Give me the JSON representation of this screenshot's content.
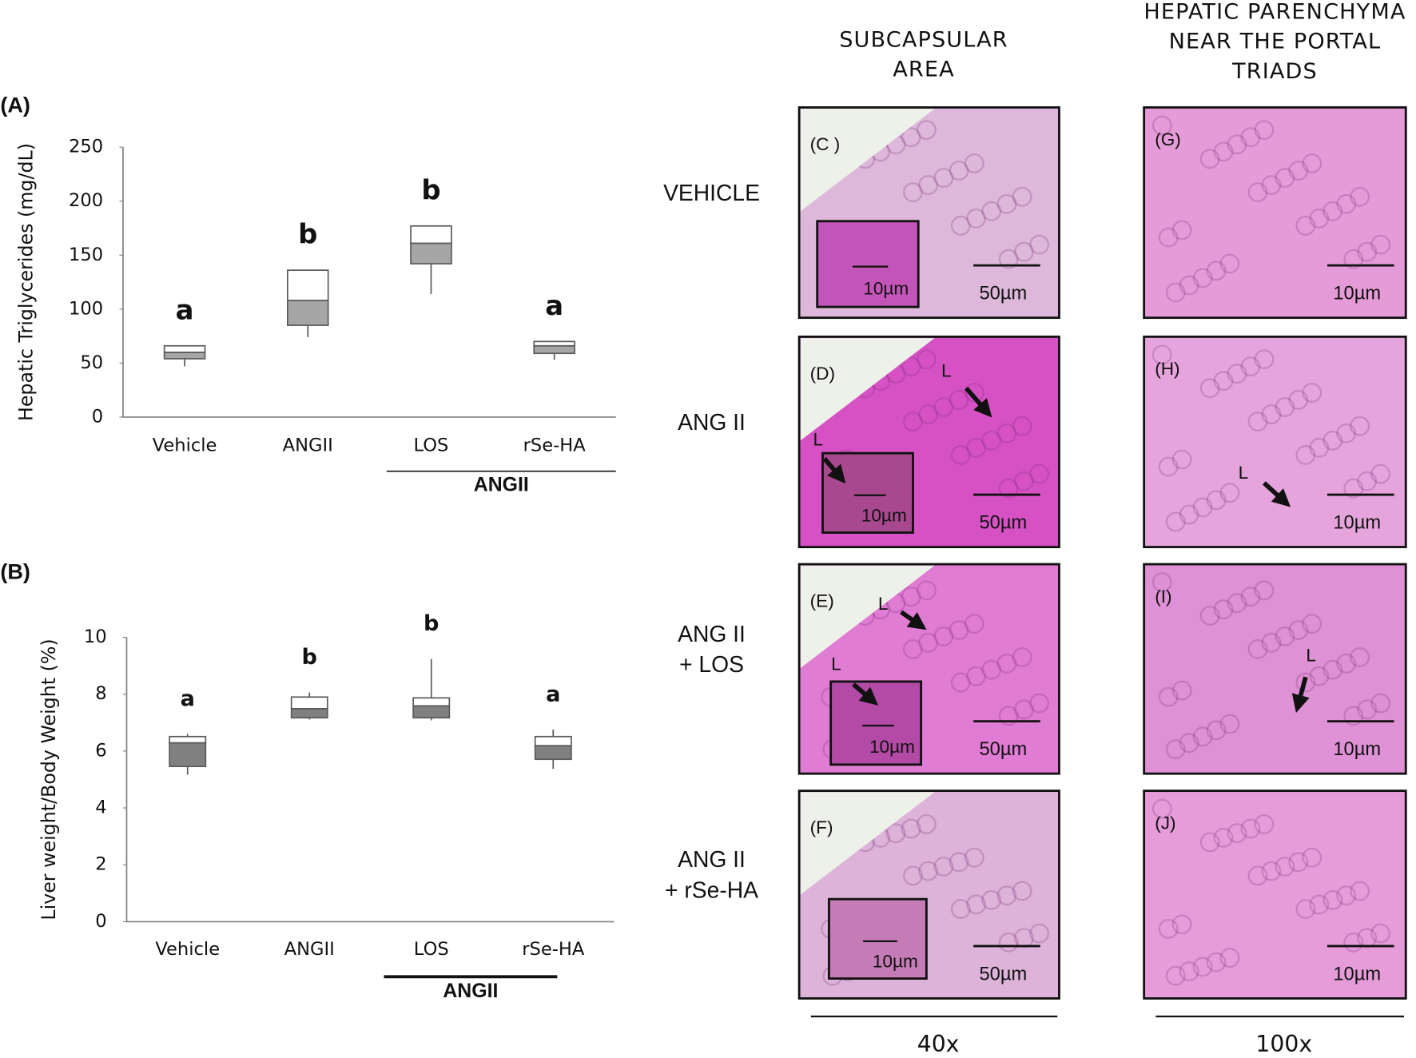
{
  "chart_data": [
    {
      "type": "box",
      "panel_label": "(A)",
      "y_label": "Hepatic Triglycerides (mg/dL)",
      "categories": [
        "Vehicle",
        "ANGII",
        "LOS",
        "rSe-HA"
      ],
      "group_label": "ANGII",
      "boxes": [
        {
          "min": 47,
          "q1": 54,
          "median": 60,
          "q3": 66,
          "max": 66
        },
        {
          "min": 74,
          "q1": 85,
          "median": 108,
          "q3": 136,
          "max": 136
        },
        {
          "min": 114,
          "q1": 142,
          "median": 161,
          "q3": 177,
          "max": 177
        },
        {
          "min": 53,
          "q1": 59,
          "median": 66,
          "q3": 70,
          "max": 70
        }
      ],
      "letters": [
        "a",
        "b",
        "b",
        "a"
      ],
      "colors": {
        "lower": "#a6a6a6",
        "upper": "#ffffff"
      },
      "ylim": [
        0,
        250
      ],
      "yticks": [
        0,
        50,
        100,
        150,
        200,
        250
      ]
    },
    {
      "type": "box",
      "panel_label": "(B)",
      "y_label": "Liver weight/Body Weight (%)",
      "categories": [
        "Vehicle",
        "ANGII",
        "LOS",
        "rSe-HA"
      ],
      "group_label": "ANGII",
      "boxes": [
        {
          "min": 5.17,
          "q1": 5.46,
          "median": 6.29,
          "q3": 6.51,
          "max": 6.6
        },
        {
          "min": 7.11,
          "q1": 7.17,
          "median": 7.49,
          "q3": 7.9,
          "max": 8.06
        },
        {
          "min": 7.08,
          "q1": 7.17,
          "median": 7.59,
          "q3": 7.87,
          "max": 9.24
        },
        {
          "min": 5.37,
          "q1": 5.71,
          "median": 6.19,
          "q3": 6.51,
          "max": 6.76
        }
      ],
      "letters": [
        "a",
        "b",
        "b",
        "a"
      ],
      "colors": {
        "lower": "#808080",
        "upper": "#ffffff"
      },
      "ylim": [
        0,
        10
      ],
      "yticks": [
        0,
        2,
        4,
        6,
        8,
        10
      ]
    }
  ],
  "histology": {
    "headers": [
      [
        "SUBCAPSULAR",
        "AREA"
      ],
      [
        "HEPATIC PARENCHYMA",
        "NEAR THE PORTAL",
        "TRIADS"
      ]
    ],
    "row_labels": [
      [
        "VEHICLE"
      ],
      [
        "ANG II"
      ],
      [
        "ANG II",
        "+ LOS"
      ],
      [
        "ANG II",
        "+ rSe-HA"
      ]
    ],
    "magnifications": [
      "40x",
      "100x"
    ],
    "panels": [
      [
        {
          "label": "(C )",
          "scale": "50µm",
          "inset_scale": "10µm"
        },
        {
          "label": "(D)",
          "scale": "50µm",
          "inset_scale": "10µm",
          "markers": [
            "L",
            "L"
          ]
        },
        {
          "label": "(E)",
          "scale": "50µm",
          "inset_scale": "10µm",
          "markers": [
            "L",
            "L"
          ]
        },
        {
          "label": "(F)",
          "scale": "50µm",
          "inset_scale": "10µm"
        }
      ],
      [
        {
          "label": "(G)",
          "scale": "10µm"
        },
        {
          "label": "(H)",
          "scale": "10µm",
          "markers": [
            "L"
          ]
        },
        {
          "label": "(I)",
          "scale": "10µm",
          "markers": [
            "L"
          ]
        },
        {
          "label": "(J)",
          "scale": "10µm"
        }
      ]
    ]
  }
}
